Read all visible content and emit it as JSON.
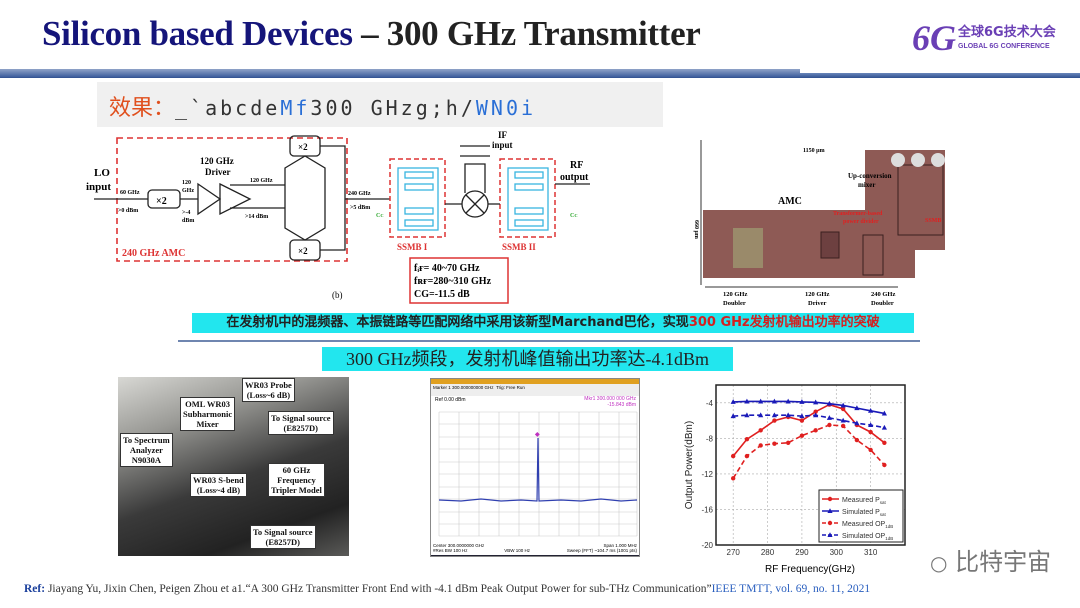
{
  "title": {
    "part1": "Silicon based Devices",
    "dash": " – ",
    "part2": "300 GHz Transmitter"
  },
  "logo": {
    "mark": "6G",
    "cn": "全球6G技术大会",
    "en": "GLOBAL 6G CONFERENCE",
    "color": "#6a3fb5"
  },
  "effect": {
    "label": "效果：",
    "t1": "_`abcde",
    "t2": "Mf",
    "t3": "300 GHzg;h/",
    "t4": "WN0i"
  },
  "circuit": {
    "lo_input": [
      "LO",
      "input"
    ],
    "lo_freq": "60 GHz",
    "lo_pow": ">0 dBm",
    "x2": "×2",
    "f120": [
      "120",
      "GHz",
      ">-4",
      "dBm"
    ],
    "driver": [
      "120 GHz",
      "Driver"
    ],
    "d_out1": "120 GHz",
    "d_out2": ">14 dBm",
    "f240": "240 GHz",
    "p240": ">5 dBm",
    "amc_label": "240 GHz AMC",
    "if_input": [
      "IF",
      "input"
    ],
    "rf_output": [
      "RF",
      "output"
    ],
    "ssmb1": "SSMB I",
    "ssmb2": "SSMB II",
    "cc": "Cᴄ",
    "spec": [
      "fᵢғ= 40~70 GHz",
      "fʀғ=280~310 GHz",
      "CG=-11.5 dB"
    ],
    "caption": "(b)"
  },
  "die": {
    "width": "1150 μm",
    "height": "660 μm",
    "amc": "AMC",
    "mixer": [
      "Up-conversion",
      "mixer"
    ],
    "divider": [
      "Transformer-based",
      "power divider"
    ],
    "ssmb": "SSMB",
    "blocks": [
      [
        "120 GHz",
        "Doubler"
      ],
      [
        "120 GHz",
        "Driver"
      ],
      [
        "240 GHz",
        "Doubler"
      ]
    ]
  },
  "banner1": {
    "a": "在发射机中的混频器、本振链路等匹配网络中采用该新型Marchand巴伦，实现",
    "b": "300 GHz",
    "c": "发射机输出功率的突破"
  },
  "banner2": "300 GHz频段，发射机峰值输出功率达-4.1dBm",
  "photo_labels": [
    [
      "WR03 Probe",
      "(Loss~6 dB)"
    ],
    [
      "OML WR03",
      "Subharmonic",
      "Mixer"
    ],
    [
      "To Signal source",
      "(E8257D)"
    ],
    [
      "To Spectrum",
      "Analyzer",
      "N9030A"
    ],
    [
      "WR03 S-bend",
      "(Loss~4 dB)"
    ],
    [
      "60 GHz",
      "Frequency",
      "Tripler Model"
    ],
    [
      "To Signal source",
      "(E8257D)"
    ]
  ],
  "spectrum": {
    "marker": "Marker 1 300.000000000 GHz",
    "trig": "Trig: Free Run",
    "ref": "Ref 0.00 dBm",
    "mkr": "Mkr1 300.000 000 GHz",
    "mkr_val": "-15.843 dBm",
    "center": "Center 300.0000000 GHz",
    "rbw": "#Res BW 100 Hz",
    "vbw": "VBW 100 Hz",
    "span": "Span 1.000 MHz",
    "sweep": "Sweep (FFT) ~104.7 ms (1001 pts)"
  },
  "chart_data": {
    "type": "line",
    "title": "",
    "xlabel": "RF Frequency(GHz)",
    "ylabel": "Output Power(dBm)",
    "xlim": [
      265,
      320
    ],
    "ylim": [
      -20,
      -2
    ],
    "xticks": [
      270,
      280,
      290,
      300,
      310
    ],
    "yticks": [
      -4,
      -8,
      -12,
      -16,
      -20
    ],
    "grid": true,
    "legend": "bottom-right",
    "x": [
      270,
      274,
      278,
      282,
      286,
      290,
      294,
      298,
      302,
      306,
      310,
      314
    ],
    "series": [
      {
        "name": "Measured P",
        "sub": "sat",
        "color": "#e02020",
        "dash": false,
        "marker": "circle",
        "values": [
          -10,
          -8.1,
          -7.1,
          -6.0,
          -5.6,
          -6.0,
          -5.0,
          -4.2,
          -4.7,
          -6.5,
          -7.3,
          -8.5
        ]
      },
      {
        "name": "Simulated P",
        "sub": "sat",
        "color": "#1a1ab8",
        "dash": false,
        "marker": "triangle",
        "values": [
          -3.9,
          -3.85,
          -3.85,
          -3.85,
          -3.85,
          -3.9,
          -3.95,
          -4.1,
          -4.3,
          -4.6,
          -4.9,
          -5.2
        ]
      },
      {
        "name": "Measured OP",
        "sub": "1dB",
        "color": "#e02020",
        "dash": true,
        "marker": "circle",
        "values": [
          -12.5,
          -10,
          -8.8,
          -8.6,
          -8.5,
          -7.7,
          -7.1,
          -6.5,
          -6.6,
          -8.2,
          -9.3,
          -11
        ]
      },
      {
        "name": "Simulated OP",
        "sub": "1dB",
        "color": "#1a1ab8",
        "dash": true,
        "marker": "triangle",
        "values": [
          -5.5,
          -5.4,
          -5.4,
          -5.4,
          -5.4,
          -5.5,
          -5.4,
          -5.7,
          -6.0,
          -6.3,
          -6.5,
          -6.8
        ]
      }
    ]
  },
  "watermark": "比特宇宙",
  "ref": {
    "k": "Ref:",
    "body": " Jiayang Yu, Jixin Chen, Peigen Zhou et a1.“A  300 GHz Transmitter Front End with -4.1 dBm Peak Output Power for sub-THz Communication”",
    "journal": "IEEE TMTT, vol. 69, no. 11, 2021"
  }
}
